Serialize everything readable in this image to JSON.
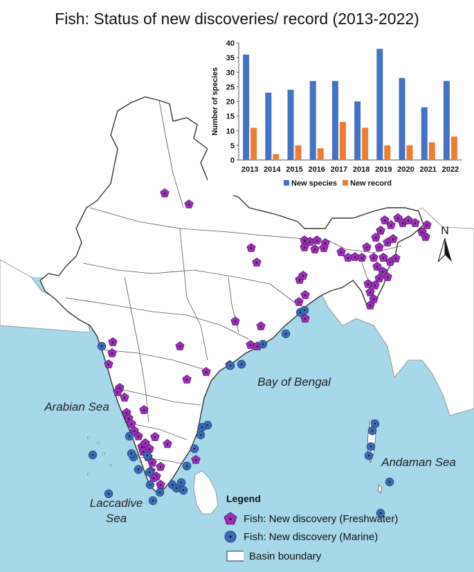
{
  "title": "Fish: Status of new discoveries/ record (2013-2022)",
  "seas": {
    "arabian": "Arabian Sea",
    "bengal": "Bay of Bengal",
    "andaman": "Andaman Sea",
    "laccadive_line1": "Laccadive",
    "laccadive_line2": "Sea"
  },
  "north_label": "N",
  "legend": {
    "title": "Legend",
    "freshwater": "Fish: New discovery (Freshwater)",
    "marine": "Fish: New discovery (Marine)",
    "basin": "Basin boundary"
  },
  "colors": {
    "sea": "#a6d8ea",
    "land": "#ffffff",
    "freshwater_marker": "#9b30b8",
    "marine_marker": "#3b6bb5",
    "new_species_bar": "#4472c4",
    "new_record_bar": "#ed7d31"
  },
  "chart_data": {
    "type": "bar",
    "title": "",
    "ylabel": "Number of species",
    "xlabel": "",
    "categories": [
      "2013",
      "2014",
      "2015",
      "2016",
      "2017",
      "2018",
      "2019",
      "2020",
      "2021",
      "2022"
    ],
    "ylim": [
      0,
      40
    ],
    "yticks": [
      0,
      5,
      10,
      15,
      20,
      25,
      30,
      35,
      40
    ],
    "grid": false,
    "legend_position": "bottom",
    "series": [
      {
        "name": "New species",
        "values": [
          36,
          23,
          24,
          27,
          27,
          20,
          38,
          28,
          18,
          27
        ]
      },
      {
        "name": "New record",
        "values": [
          11,
          2,
          5,
          4,
          13,
          11,
          5,
          5,
          6,
          8
        ]
      }
    ]
  }
}
